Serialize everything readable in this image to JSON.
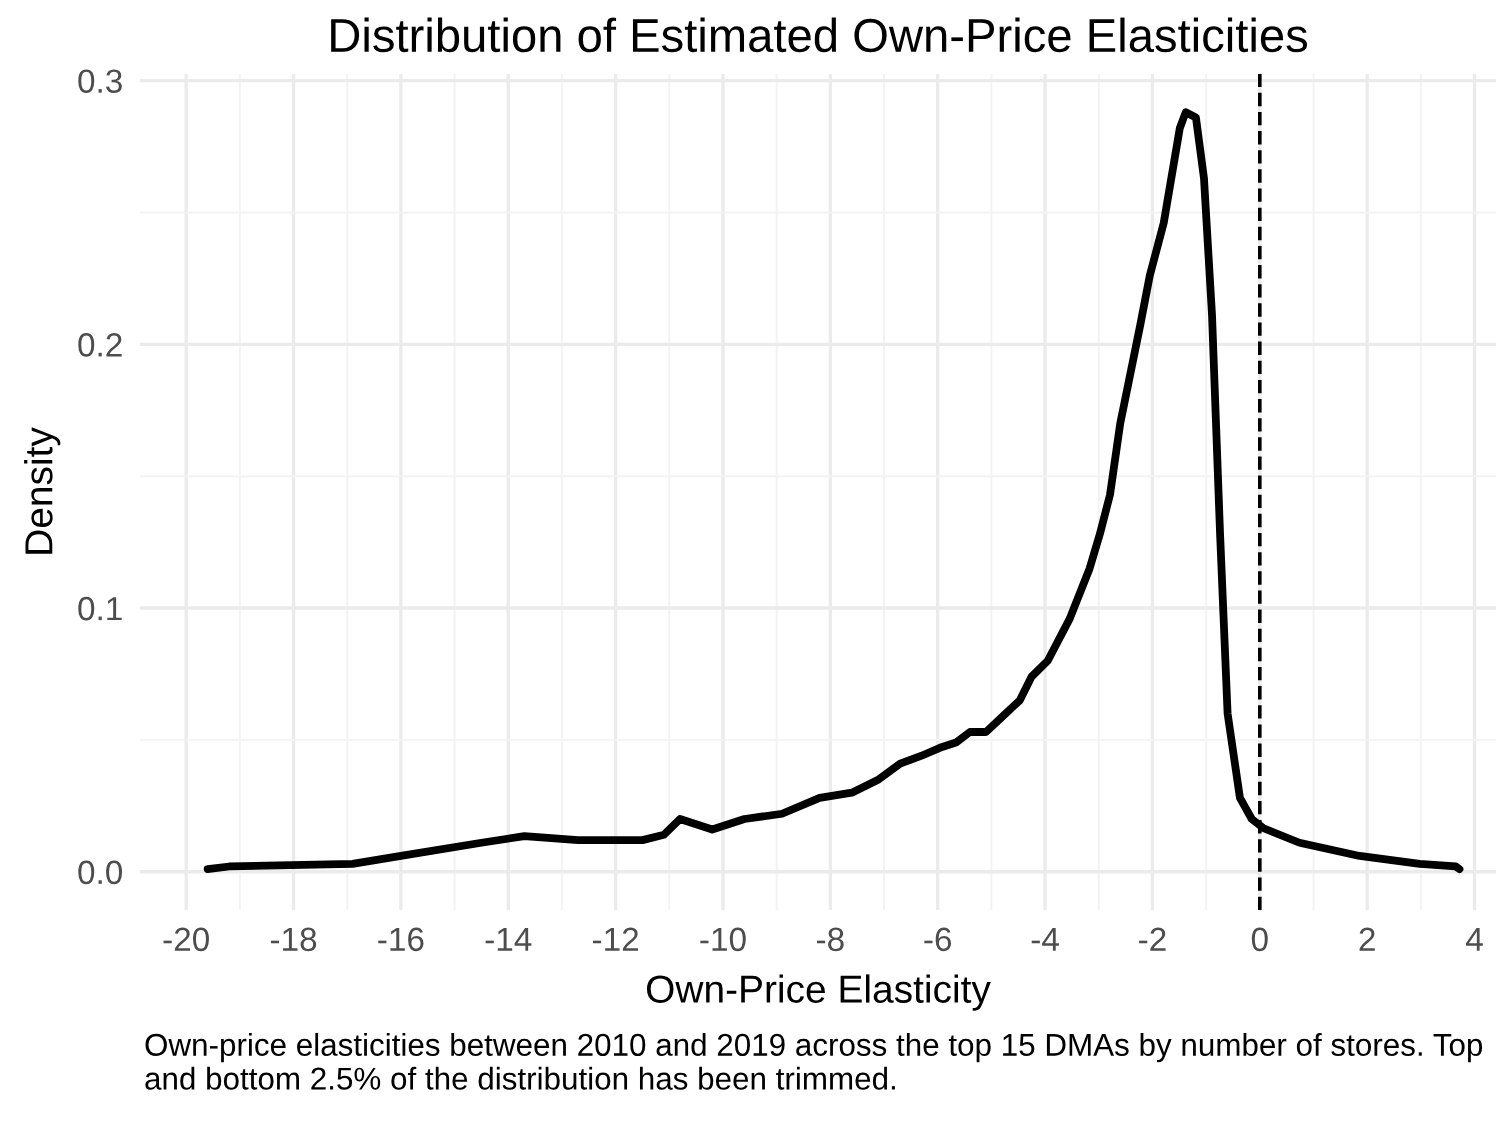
{
  "chart_data": {
    "type": "line",
    "title": "Distribution of Estimated Own-Price Elasticities",
    "xlabel": "Own-Price Elasticity",
    "ylabel": "Density",
    "annotations": [
      "Own-price elasticities between 2010 and 2019 across the top 15 DMAs by number of stores. Top and bottom 2.5% of the distribution has been trimmed."
    ],
    "series": [
      {
        "color": "#000000",
        "x": [
          -19.6,
          -19.2,
          -16.9,
          -16.0,
          -14.5,
          -13.7,
          -12.7,
          -11.5,
          -11.1,
          -10.8,
          -10.2,
          -9.6,
          -8.9,
          -8.2,
          -7.6,
          -7.1,
          -6.7,
          -6.3,
          -5.96,
          -5.66,
          -5.4,
          -5.1,
          -4.84,
          -4.47,
          -4.25,
          -3.95,
          -3.54,
          -3.17,
          -2.98,
          -2.79,
          -2.6,
          -2.42,
          -2.23,
          -2.05,
          -1.79,
          -1.49,
          -1.38,
          -1.19,
          -1.04,
          -0.89,
          -0.74,
          -0.6,
          -0.37,
          -0.15,
          0.07,
          0.74,
          1.86,
          2.98,
          3.65,
          3.72
        ],
        "values": [
          0.001,
          0.002,
          0.003,
          0.006,
          0.011,
          0.0135,
          0.012,
          0.012,
          0.014,
          0.02,
          0.016,
          0.02,
          0.022,
          0.028,
          0.03,
          0.035,
          0.041,
          0.044,
          0.047,
          0.049,
          0.053,
          0.053,
          0.058,
          0.065,
          0.074,
          0.08,
          0.096,
          0.115,
          0.128,
          0.143,
          0.17,
          0.188,
          0.207,
          0.226,
          0.246,
          0.282,
          0.288,
          0.286,
          0.263,
          0.211,
          0.128,
          0.06,
          0.028,
          0.02,
          0.0165,
          0.011,
          0.006,
          0.003,
          0.002,
          0.001
        ]
      }
    ],
    "xlim": [
      -20.86,
      4.4
    ],
    "ylim": [
      -0.0145,
      0.3025
    ],
    "xticks": [
      -20,
      -18,
      -16,
      -14,
      -12,
      -10,
      -8,
      -6,
      -4,
      -2,
      0,
      2,
      4
    ],
    "yticks": [
      {
        "value": 0,
        "label": "0.0"
      },
      {
        "value": 0.1,
        "label": "0.1"
      },
      {
        "value": 0.2,
        "label": "0.2"
      },
      {
        "value": 0.3,
        "label": "0.3"
      }
    ],
    "ref_lines": [
      {
        "axis": "x",
        "value": 0,
        "color": "#000000",
        "line_style": "dashed"
      }
    ],
    "grid": true,
    "legend": false,
    "marker": "none",
    "line_style": "solid"
  }
}
